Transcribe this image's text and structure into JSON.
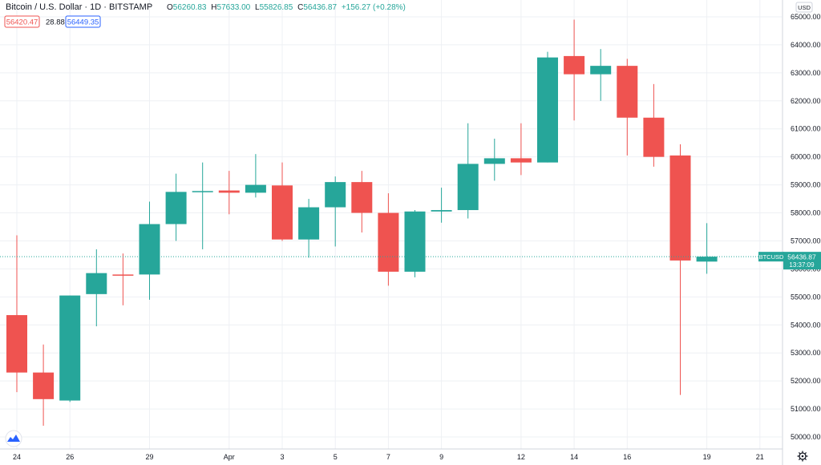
{
  "colors": {
    "up": "#26a69a",
    "down": "#ef5350",
    "grid": "#eef0f4",
    "axis_text": "#131722",
    "last_price_bg": "#26a69a",
    "info_blue": "#2962ff",
    "info_red": "#ef5350"
  },
  "header": {
    "title": "Bitcoin / U.S. Dollar · 1D · BITSTAMP",
    "open_label": "O",
    "open": "56260.83",
    "high_label": "H",
    "high": "57633.00",
    "low_label": "L",
    "low": "55826.85",
    "close_label": "C",
    "close": "56436.87",
    "change": "+156.27 (+0.28%)",
    "bid": "56420.47",
    "spread": "28.88",
    "ask": "56449.35"
  },
  "axis": {
    "currency_badge": "USD",
    "last_symbol": "BTCUSD",
    "last_price": "56436.87",
    "countdown": "13:37:09"
  },
  "icons": {
    "logo": "tradingview-logo-icon",
    "settings": "gear-icon"
  },
  "chart_data": {
    "type": "candlestick",
    "title": "Bitcoin / U.S. Dollar · 1D · BITSTAMP",
    "ylim": [
      49700,
      65300
    ],
    "y_ticks": [
      50000,
      51000,
      52000,
      53000,
      54000,
      55000,
      56000,
      57000,
      58000,
      59000,
      60000,
      61000,
      62000,
      63000,
      64000,
      65000
    ],
    "x_ticks": [
      {
        "index": 0,
        "label": "24"
      },
      {
        "index": 2,
        "label": "26"
      },
      {
        "index": 5,
        "label": "29"
      },
      {
        "index": 8,
        "label": "Apr"
      },
      {
        "index": 10,
        "label": "3"
      },
      {
        "index": 12,
        "label": "5"
      },
      {
        "index": 14,
        "label": "7"
      },
      {
        "index": 16,
        "label": "9"
      },
      {
        "index": 19,
        "label": "12"
      },
      {
        "index": 21,
        "label": "14"
      },
      {
        "index": 23,
        "label": "16"
      },
      {
        "index": 26,
        "label": "19"
      },
      {
        "index": 28,
        "label": "21"
      }
    ],
    "candles": [
      {
        "o": 54350,
        "h": 57200,
        "l": 51600,
        "c": 52300
      },
      {
        "o": 52300,
        "h": 53300,
        "l": 50400,
        "c": 51350
      },
      {
        "o": 51300,
        "h": 55050,
        "l": 51250,
        "c": 55050
      },
      {
        "o": 55100,
        "h": 56700,
        "l": 53950,
        "c": 55850
      },
      {
        "o": 55800,
        "h": 56550,
        "l": 54700,
        "c": 55780
      },
      {
        "o": 55800,
        "h": 58400,
        "l": 54900,
        "c": 57600
      },
      {
        "o": 57600,
        "h": 59400,
        "l": 57000,
        "c": 58750
      },
      {
        "o": 58750,
        "h": 59800,
        "l": 56700,
        "c": 58780
      },
      {
        "o": 58800,
        "h": 59500,
        "l": 57950,
        "c": 58720
      },
      {
        "o": 58720,
        "h": 60100,
        "l": 58550,
        "c": 59000
      },
      {
        "o": 58980,
        "h": 59800,
        "l": 57000,
        "c": 57050
      },
      {
        "o": 57050,
        "h": 58500,
        "l": 56400,
        "c": 58200
      },
      {
        "o": 58200,
        "h": 59300,
        "l": 56800,
        "c": 59100
      },
      {
        "o": 59100,
        "h": 59500,
        "l": 57300,
        "c": 58000
      },
      {
        "o": 58000,
        "h": 58700,
        "l": 55400,
        "c": 55900
      },
      {
        "o": 55900,
        "h": 58100,
        "l": 55700,
        "c": 58050
      },
      {
        "o": 58050,
        "h": 58900,
        "l": 57650,
        "c": 58100
      },
      {
        "o": 58100,
        "h": 61200,
        "l": 57800,
        "c": 59750
      },
      {
        "o": 59750,
        "h": 60650,
        "l": 59150,
        "c": 59950
      },
      {
        "o": 59950,
        "h": 61200,
        "l": 59350,
        "c": 59800
      },
      {
        "o": 59800,
        "h": 63750,
        "l": 59800,
        "c": 63550
      },
      {
        "o": 63600,
        "h": 64900,
        "l": 61300,
        "c": 62950
      },
      {
        "o": 62950,
        "h": 63850,
        "l": 62000,
        "c": 63250
      },
      {
        "o": 63250,
        "h": 63500,
        "l": 60050,
        "c": 61400
      },
      {
        "o": 61400,
        "h": 62600,
        "l": 59650,
        "c": 60000
      },
      {
        "o": 60050,
        "h": 60450,
        "l": 51500,
        "c": 56300
      },
      {
        "o": 56260.83,
        "h": 57633,
        "l": 55826.85,
        "c": 56436.87
      }
    ]
  }
}
